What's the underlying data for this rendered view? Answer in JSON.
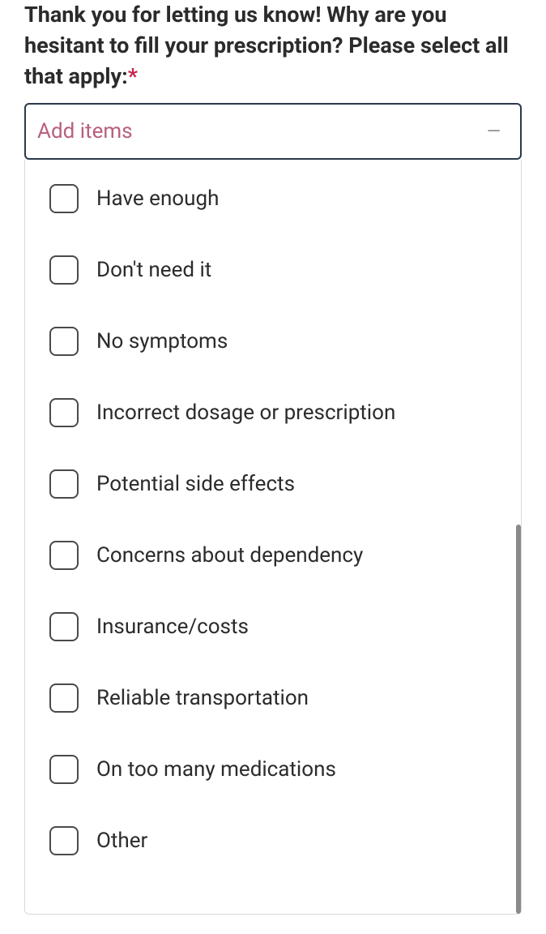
{
  "question": {
    "text": "Thank you for letting us know! Why are you hesitant to fill your prescription? Please select all that apply:",
    "required_mark": "*"
  },
  "select": {
    "placeholder": "Add items",
    "dash": "—"
  },
  "options": [
    {
      "label": "Have enough",
      "checked": false
    },
    {
      "label": "Don't need it",
      "checked": false
    },
    {
      "label": "No symptoms",
      "checked": false
    },
    {
      "label": "Incorrect dosage or prescription",
      "checked": false
    },
    {
      "label": "Potential side effects",
      "checked": false
    },
    {
      "label": "Concerns about dependency",
      "checked": false
    },
    {
      "label": "Insurance/costs",
      "checked": false
    },
    {
      "label": "Reliable transportation",
      "checked": false
    },
    {
      "label": "On too many medications",
      "checked": false
    },
    {
      "label": "Other",
      "checked": false
    }
  ],
  "colors": {
    "text_primary": "#2b2b2b",
    "required": "#c7254e",
    "placeholder": "#b85f7c",
    "border_focus": "#2b3a4a",
    "border_light": "#d9d9d9",
    "checkbox_border": "#4a4a4a",
    "scrollbar": "#8a8a8a",
    "background": "#ffffff"
  },
  "typography": {
    "question_fontsize": 27,
    "question_weight": 700,
    "placeholder_fontsize": 26,
    "option_fontsize": 26
  }
}
